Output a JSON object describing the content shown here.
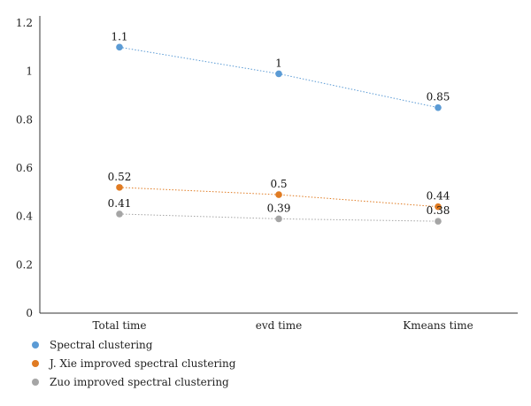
{
  "chart_data": {
    "type": "line",
    "categories": [
      "Total time",
      "evd time",
      "Kmeans time"
    ],
    "ylim": [
      0,
      1.2
    ],
    "yticks": [
      0,
      0.2,
      0.4,
      0.6,
      0.8,
      1,
      1.2
    ],
    "ytick_labels": [
      "0",
      "0.2",
      "0.4",
      "0.6",
      "0.8",
      "1",
      "1.2"
    ],
    "grid": false,
    "legend_position": "bottom-left",
    "series": [
      {
        "name": "Spectral clustering",
        "color": "#5b9bd5",
        "values": [
          1.1,
          0.99,
          0.85
        ],
        "labels": [
          "1.1",
          "1",
          "0.85"
        ]
      },
      {
        "name": "J. Xie improved spectral clustering",
        "color": "#e07b22",
        "values": [
          0.52,
          0.49,
          0.44
        ],
        "labels": [
          "0.52",
          "0.5",
          "0.44"
        ]
      },
      {
        "name": "Zuo improved spectral clustering",
        "color": "#a5a5a5",
        "values": [
          0.41,
          0.39,
          0.38
        ],
        "labels": [
          "0.41",
          "0.39",
          "0.38"
        ]
      }
    ]
  }
}
